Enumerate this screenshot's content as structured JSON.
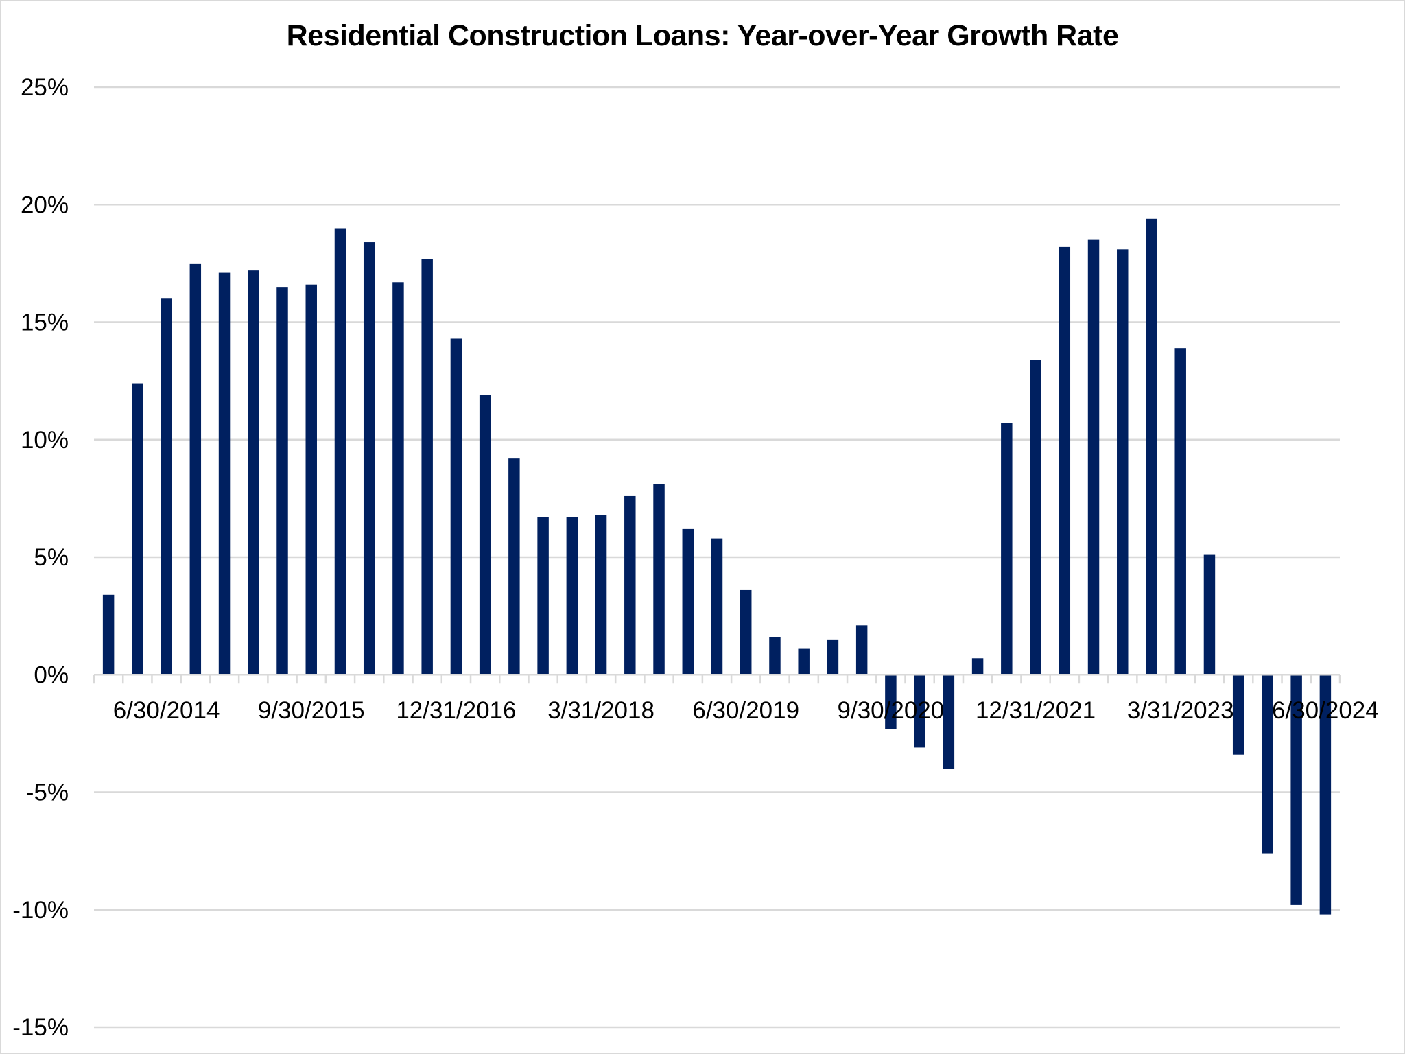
{
  "chart_data": {
    "type": "bar",
    "title": "Residential Construction Loans: Year-over-Year Growth Rate",
    "xlabel": "",
    "ylabel": "",
    "ylim": [
      -15,
      25
    ],
    "yticks": [
      25,
      20,
      15,
      10,
      5,
      0,
      -5,
      -10,
      -15
    ],
    "ytick_labels": [
      "25%",
      "20%",
      "15%",
      "10%",
      "5%",
      "0%",
      "-5%",
      "-10%",
      "-15%"
    ],
    "grid": true,
    "legend": null,
    "bar_color": "#002060",
    "gridline_color": "#d9d9d9",
    "visible_xtick_labels": [
      "6/30/2014",
      "9/30/2015",
      "12/31/2016",
      "3/31/2018",
      "6/30/2019",
      "9/30/2020",
      "12/31/2021",
      "3/31/2023",
      "6/30/2024"
    ],
    "categories": [
      "12/31/2013",
      "3/31/2014",
      "6/30/2014",
      "9/30/2014",
      "12/31/2014",
      "3/31/2015",
      "6/30/2015",
      "9/30/2015",
      "12/31/2015",
      "3/31/2016",
      "6/30/2016",
      "9/30/2016",
      "12/31/2016",
      "3/31/2017",
      "6/30/2017",
      "9/30/2017",
      "12/31/2017",
      "3/31/2018",
      "6/30/2018",
      "9/30/2018",
      "12/31/2018",
      "3/31/2019",
      "6/30/2019",
      "9/30/2019",
      "12/31/2019",
      "3/31/2020",
      "6/30/2020",
      "9/30/2020",
      "12/31/2020",
      "3/31/2021",
      "6/30/2021",
      "9/30/2021",
      "12/31/2021",
      "3/31/2022",
      "6/30/2022",
      "9/30/2022",
      "12/31/2022",
      "3/31/2023",
      "6/30/2023",
      "9/30/2023",
      "12/31/2023",
      "3/31/2024",
      "6/30/2024"
    ],
    "values": [
      3.4,
      12.4,
      16.0,
      17.5,
      17.1,
      17.2,
      16.5,
      16.6,
      19.0,
      18.4,
      16.7,
      17.7,
      14.3,
      11.9,
      9.2,
      6.7,
      6.7,
      6.8,
      7.6,
      8.1,
      6.2,
      5.8,
      3.6,
      1.6,
      1.1,
      1.5,
      2.1,
      -2.3,
      -3.1,
      -4.0,
      0.7,
      10.7,
      13.4,
      18.2,
      18.5,
      18.1,
      19.4,
      13.9,
      5.1,
      -3.4,
      -7.6,
      -9.8,
      -10.2
    ],
    "units": "%"
  }
}
